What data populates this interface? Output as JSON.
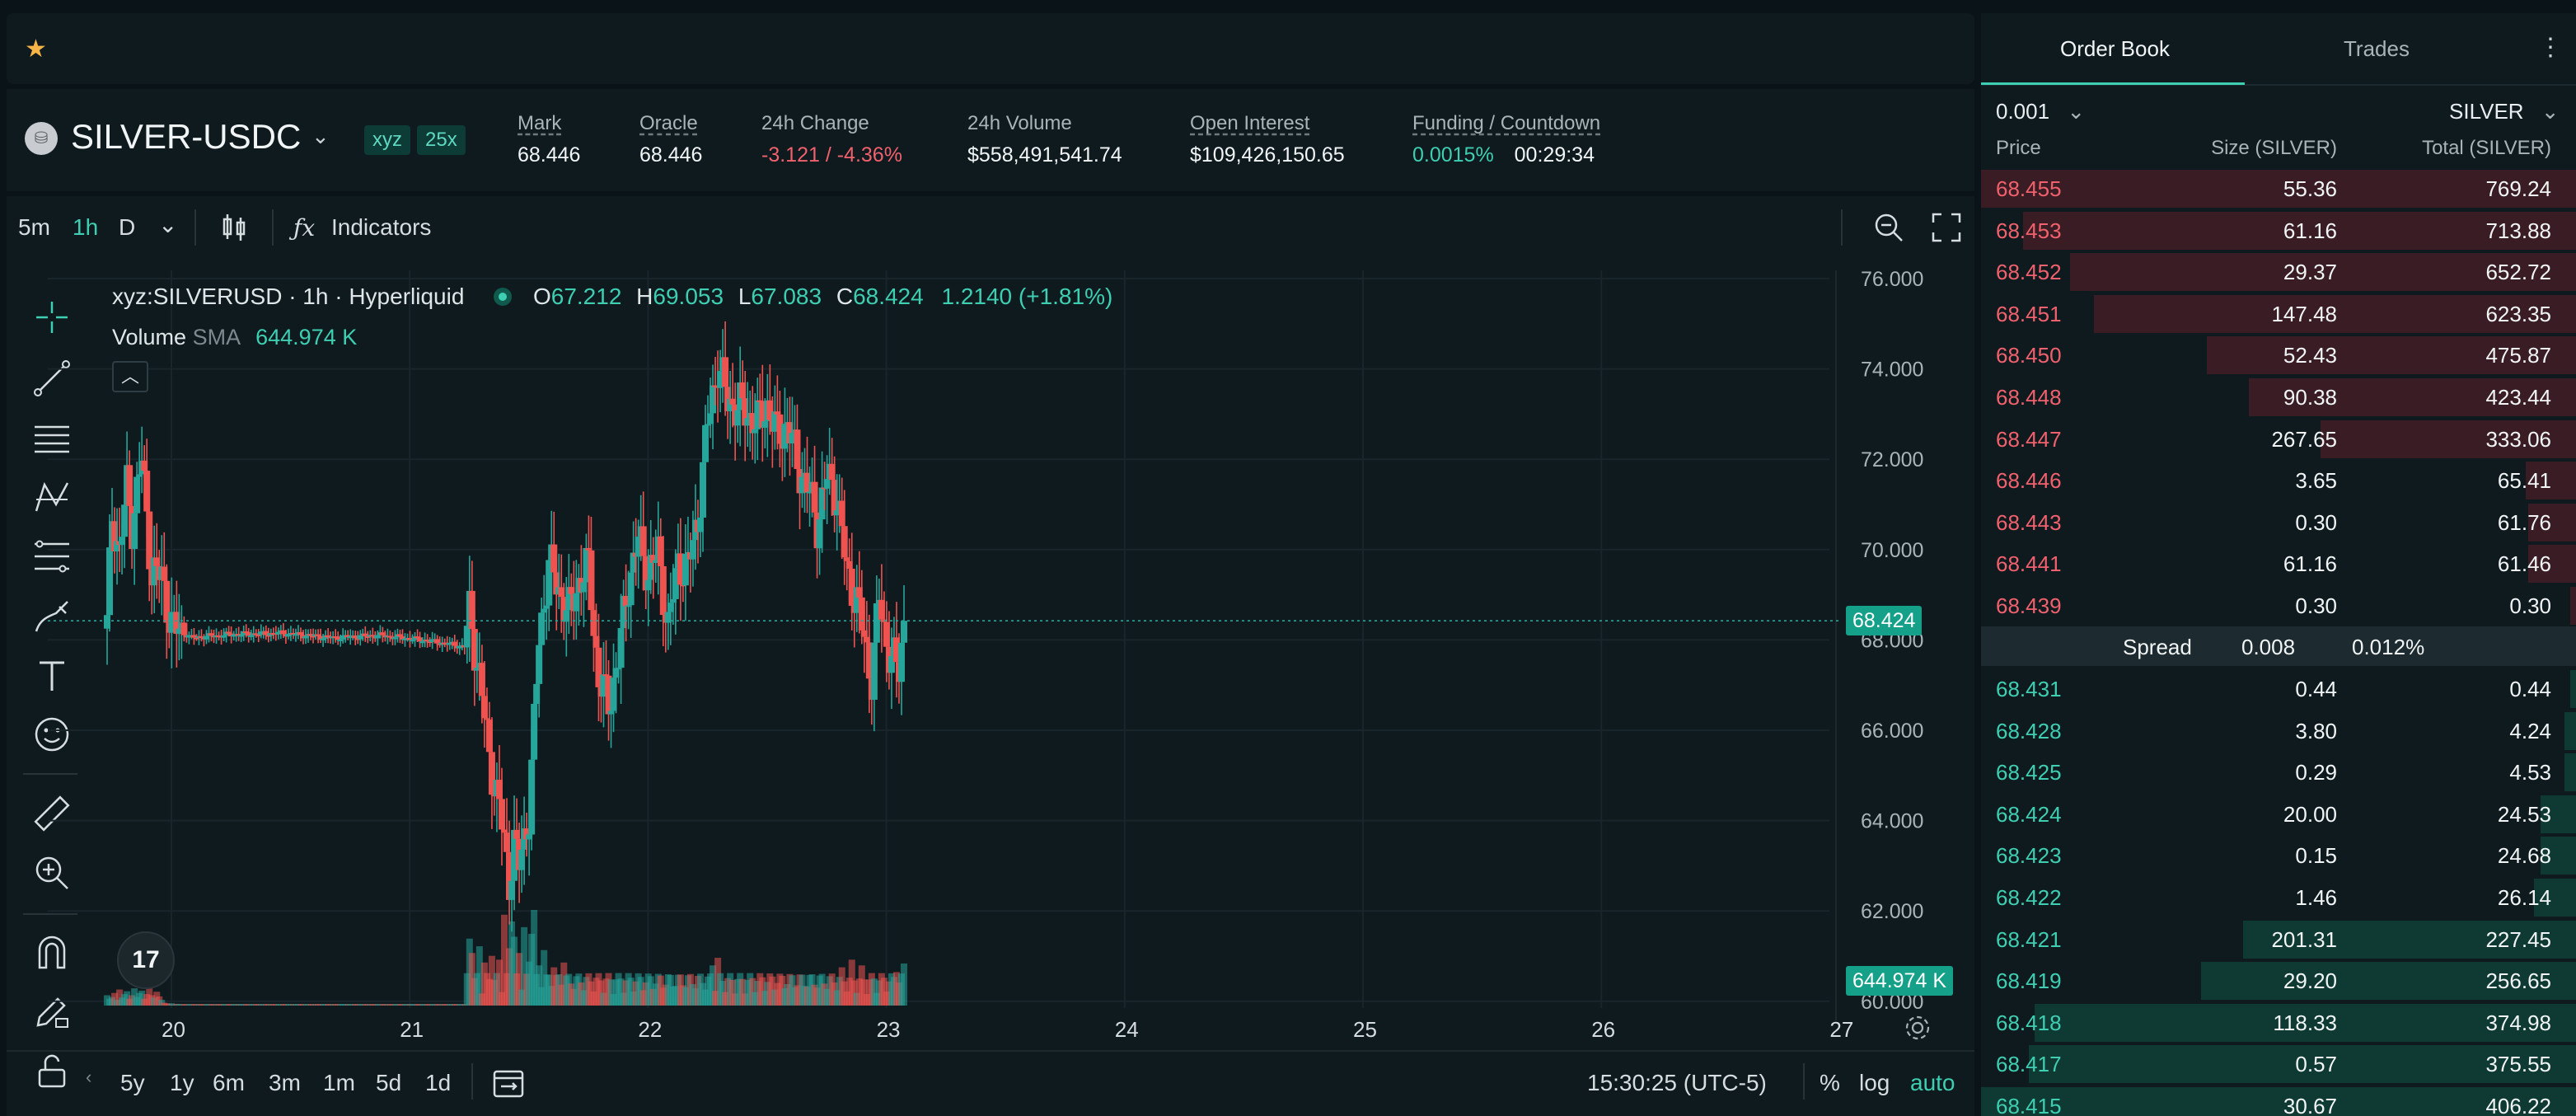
{
  "favorites_bar": {
    "star_icon": "star-icon"
  },
  "market": {
    "symbol": "SILVER-USDC",
    "badges": [
      "xyz",
      "25x"
    ],
    "stats": [
      {
        "label": "Mark",
        "value": "68.446",
        "tone": "neutral",
        "dotted": true
      },
      {
        "label": "Oracle",
        "value": "68.446",
        "tone": "neutral",
        "dotted": true
      },
      {
        "label": "24h Change",
        "value": "-3.121 / -4.36%",
        "tone": "neg",
        "dotted": false
      },
      {
        "label": "24h Volume",
        "value": "$558,491,541.74",
        "tone": "neutral",
        "dotted": false
      },
      {
        "label": "Open Interest",
        "value": "$109,426,150.65",
        "tone": "neutral",
        "dotted": true
      },
      {
        "label": "Funding / Countdown",
        "value": "0.0015%",
        "value2": "00:29:34",
        "tone": "pos",
        "dotted": true
      }
    ]
  },
  "chart_toolbar": {
    "intervals": [
      "5m",
      "1h",
      "D"
    ],
    "active_interval": "1h",
    "indicators_label": "Indicators"
  },
  "chart_legend": {
    "title": "xyz:SILVERUSD · 1h · Hyperliquid",
    "open_label": "O",
    "open": "67.212",
    "high_label": "H",
    "high": "69.053",
    "low_label": "L",
    "low": "67.083",
    "close_label": "C",
    "close": "68.424",
    "change": "1.2140 (+1.81%)",
    "volume_label": "Volume",
    "volume_sma_label": "SMA",
    "volume_value": "644.974 K"
  },
  "chart_data": {
    "type": "candlestick",
    "symbol": "xyz:SILVERUSD",
    "interval": "1h",
    "y_ticks": [
      "76.000",
      "74.000",
      "72.000",
      "70.000",
      "68.000",
      "66.000",
      "64.000",
      "62.000",
      "60.000"
    ],
    "ylim": [
      60,
      76
    ],
    "x_ticks": [
      "20",
      "21",
      "22",
      "23",
      "24",
      "25",
      "26",
      "27"
    ],
    "last_price_label": "68.424",
    "last_price": 68.424,
    "volume_label": "644.974 K",
    "grid": true,
    "anchors": [
      [
        0,
        68.3
      ],
      [
        2,
        70.8
      ],
      [
        5,
        69.9
      ],
      [
        8,
        71.4
      ],
      [
        10,
        70.6
      ],
      [
        14,
        72.0
      ],
      [
        18,
        69.5
      ],
      [
        22,
        69.4
      ],
      [
        26,
        68.3
      ],
      [
        34,
        68.05
      ],
      [
        50,
        68.12
      ],
      [
        70,
        68.15
      ],
      [
        90,
        68.05
      ],
      [
        110,
        68.1
      ],
      [
        130,
        67.98
      ],
      [
        144,
        67.85
      ],
      [
        146,
        68.6
      ],
      [
        150,
        67.2
      ],
      [
        154,
        65.4
      ],
      [
        158,
        64.3
      ],
      [
        162,
        62.7
      ],
      [
        164,
        63.5
      ],
      [
        166,
        63.0
      ],
      [
        170,
        64.2
      ],
      [
        174,
        68.0
      ],
      [
        178,
        69.7
      ],
      [
        182,
        69.1
      ],
      [
        186,
        68.6
      ],
      [
        190,
        69.3
      ],
      [
        194,
        69.6
      ],
      [
        198,
        67.1
      ],
      [
        202,
        66.6
      ],
      [
        206,
        67.6
      ],
      [
        210,
        69.3
      ],
      [
        214,
        70.2
      ],
      [
        218,
        69.5
      ],
      [
        222,
        69.9
      ],
      [
        226,
        68.3
      ],
      [
        230,
        69.7
      ],
      [
        234,
        69.6
      ],
      [
        238,
        70.7
      ],
      [
        242,
        72.8
      ],
      [
        246,
        74.1
      ],
      [
        250,
        73.3
      ],
      [
        256,
        73.1
      ],
      [
        262,
        72.8
      ],
      [
        266,
        73.2
      ],
      [
        270,
        72.5
      ],
      [
        274,
        72.8
      ],
      [
        278,
        71.9
      ],
      [
        282,
        71.4
      ],
      [
        286,
        70.6
      ],
      [
        290,
        71.6
      ],
      [
        294,
        71.2
      ],
      [
        298,
        69.5
      ],
      [
        302,
        68.9
      ],
      [
        306,
        67.7
      ],
      [
        308,
        67.2
      ],
      [
        311,
        68.9
      ],
      [
        313,
        68.2
      ],
      [
        316,
        67.6
      ],
      [
        319,
        67.3
      ],
      [
        321,
        68.42
      ]
    ],
    "volume_pattern": [
      0.18,
      0.12,
      0.15,
      0.22,
      0.1,
      0.28,
      0.14,
      0.2,
      0.25,
      0.12,
      0.18,
      0.3,
      0.15,
      0.22,
      0.26,
      0.12,
      0.2,
      0.35,
      0.18,
      0.14,
      0.24,
      0.16,
      0.1,
      0.05,
      0.04,
      0.03,
      0.04,
      0.02,
      0.03,
      0.02
    ],
    "volume_events": [
      [
        146,
        0.7
      ],
      [
        147,
        0.55
      ],
      [
        150,
        0.62
      ],
      [
        152,
        0.45
      ],
      [
        155,
        0.52
      ],
      [
        158,
        0.48
      ],
      [
        160,
        0.95
      ],
      [
        162,
        0.6
      ],
      [
        163,
        0.88
      ],
      [
        164,
        0.72
      ],
      [
        166,
        0.55
      ],
      [
        168,
        0.82
      ],
      [
        170,
        0.46
      ],
      [
        171,
        0.75
      ],
      [
        172,
        1.0
      ],
      [
        174,
        0.42
      ],
      [
        176,
        0.58
      ],
      [
        180,
        0.4
      ],
      [
        184,
        0.45
      ],
      [
        244,
        0.42
      ],
      [
        246,
        0.5
      ],
      [
        296,
        0.4
      ],
      [
        300,
        0.48
      ],
      [
        304,
        0.42
      ],
      [
        318,
        0.35
      ],
      [
        321,
        0.44
      ]
    ]
  },
  "range_buttons": [
    "5y",
    "1y",
    "6m",
    "3m",
    "1m",
    "5d",
    "1d"
  ],
  "time_readout": "15:30:25 (UTC-5)",
  "scale_options": [
    "%",
    "log",
    "auto"
  ],
  "order_book": {
    "tabs": [
      "Order Book",
      "Trades"
    ],
    "tick_size": "0.001",
    "unit": "SILVER",
    "headers": {
      "price": "Price",
      "size": "Size (SILVER)",
      "total": "Total (SILVER)"
    },
    "asks": [
      {
        "price": "68.455",
        "size": "55.36",
        "total": "769.24",
        "depth": 1.0
      },
      {
        "price": "68.453",
        "size": "61.16",
        "total": "713.88",
        "depth": 0.93
      },
      {
        "price": "68.452",
        "size": "29.37",
        "total": "652.72",
        "depth": 0.85
      },
      {
        "price": "68.451",
        "size": "147.48",
        "total": "623.35",
        "depth": 0.81
      },
      {
        "price": "68.450",
        "size": "52.43",
        "total": "475.87",
        "depth": 0.62
      },
      {
        "price": "68.448",
        "size": "90.38",
        "total": "423.44",
        "depth": 0.55
      },
      {
        "price": "68.447",
        "size": "267.65",
        "total": "333.06",
        "depth": 0.43
      },
      {
        "price": "68.446",
        "size": "3.65",
        "total": "65.41",
        "depth": 0.085
      },
      {
        "price": "68.443",
        "size": "0.30",
        "total": "61.76",
        "depth": 0.08
      },
      {
        "price": "68.441",
        "size": "61.16",
        "total": "61.46",
        "depth": 0.08
      },
      {
        "price": "68.439",
        "size": "0.30",
        "total": "0.30",
        "depth": 0.01
      }
    ],
    "spread": {
      "label": "Spread",
      "value": "0.008",
      "percent": "0.012%"
    },
    "bids": [
      {
        "price": "68.431",
        "size": "0.44",
        "total": "0.44",
        "depth": 0.01
      },
      {
        "price": "68.428",
        "size": "3.80",
        "total": "4.24",
        "depth": 0.02
      },
      {
        "price": "68.425",
        "size": "0.29",
        "total": "4.53",
        "depth": 0.02
      },
      {
        "price": "68.424",
        "size": "20.00",
        "total": "24.53",
        "depth": 0.06
      },
      {
        "price": "68.423",
        "size": "0.15",
        "total": "24.68",
        "depth": 0.06
      },
      {
        "price": "68.422",
        "size": "1.46",
        "total": "26.14",
        "depth": 0.07
      },
      {
        "price": "68.421",
        "size": "201.31",
        "total": "227.45",
        "depth": 0.56
      },
      {
        "price": "68.419",
        "size": "29.20",
        "total": "256.65",
        "depth": 0.63
      },
      {
        "price": "68.418",
        "size": "118.33",
        "total": "374.98",
        "depth": 0.91
      },
      {
        "price": "68.417",
        "size": "0.57",
        "total": "375.55",
        "depth": 0.92
      },
      {
        "price": "68.415",
        "size": "30.67",
        "total": "406.22",
        "depth": 1.0
      }
    ]
  },
  "colors": {
    "up": "#26a69a",
    "down": "#ef5350",
    "accent": "#3ecfb2",
    "ask_bg": "#3a1d24",
    "bid_bg": "#0f3a33"
  }
}
